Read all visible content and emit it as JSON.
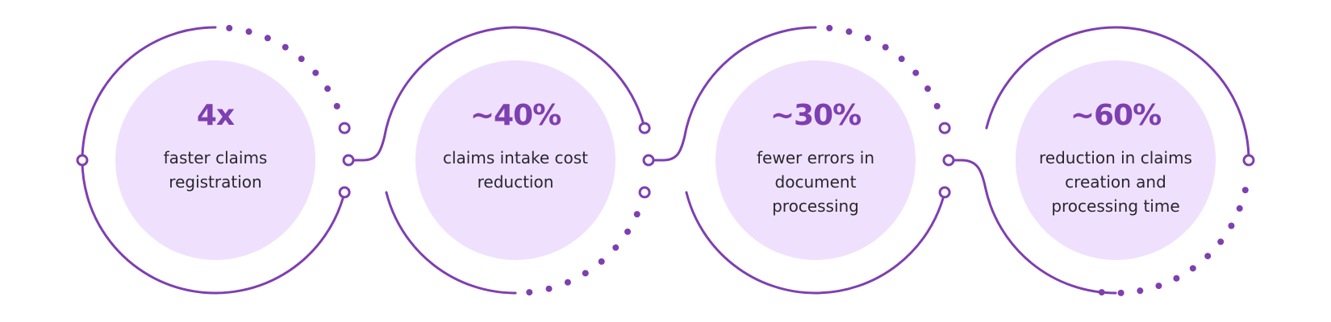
{
  "colors": {
    "accent": "#7e3fb0",
    "disk": "#efe1fd",
    "text": "#2a2730"
  },
  "stats": [
    {
      "value": "4x",
      "label": "faster claims registration"
    },
    {
      "value": "~40%",
      "label": "claims intake cost reduction"
    },
    {
      "value": "~30%",
      "label": "fewer errors in document processing"
    },
    {
      "value": "~60%",
      "label": "reduction in claims creation and processing time"
    }
  ]
}
